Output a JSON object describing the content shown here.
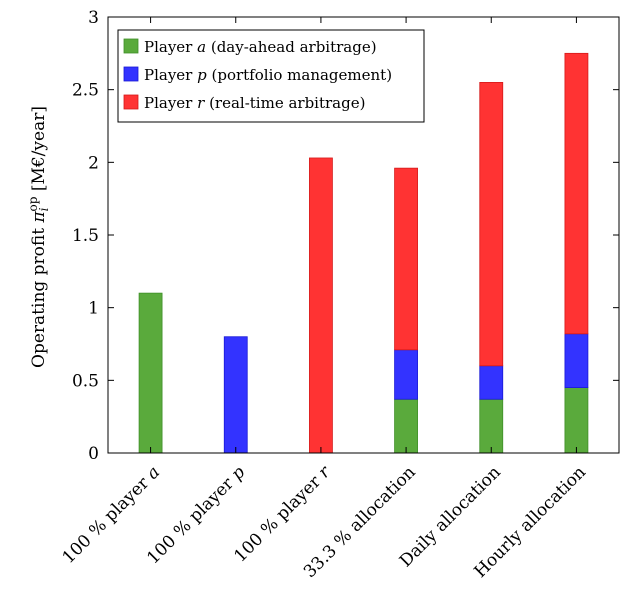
{
  "chart_data": {
    "type": "bar",
    "stacked": true,
    "title": "",
    "xlabel": "",
    "ylabel": "Operating profit π_i^op [M€/year]",
    "ylabel_parts": {
      "main": "Operating profit ",
      "pi": "π",
      "sub": "i",
      "sup": "op",
      "unit": " [M€/year]"
    },
    "ylim": [
      0,
      3
    ],
    "yticks": [
      0,
      0.5,
      1,
      1.5,
      2,
      2.5,
      3
    ],
    "ytick_labels": [
      "0",
      "0.5",
      "1",
      "1.5",
      "2",
      "2.5",
      "3"
    ],
    "grid": false,
    "legend_position": "top-left",
    "categories": [
      "100 % player a",
      "100 % player p",
      "100 % player r",
      "33.3 % allocation",
      "Daily allocation",
      "Hourly allocation"
    ],
    "category_labels": [
      {
        "parts": [
          {
            "t": "100 % player "
          },
          {
            "t": "a",
            "italic": true
          }
        ]
      },
      {
        "parts": [
          {
            "t": "100 % player "
          },
          {
            "t": "p",
            "italic": true
          }
        ]
      },
      {
        "parts": [
          {
            "t": "100 % player "
          },
          {
            "t": "r",
            "italic": true
          }
        ]
      },
      {
        "parts": [
          {
            "t": "33.3 % allocation"
          }
        ]
      },
      {
        "parts": [
          {
            "t": "Daily allocation"
          }
        ]
      },
      {
        "parts": [
          {
            "t": "Hourly allocation"
          }
        ]
      }
    ],
    "series": [
      {
        "name": "Player a (day-ahead arbitrage)",
        "legend_parts": [
          {
            "t": "Player "
          },
          {
            "t": "a",
            "italic": true
          },
          {
            "t": " (day-ahead arbitrage)"
          }
        ],
        "color": "#5aaa3c",
        "stroke": "#3f8f28",
        "values": [
          1.1,
          0,
          0,
          0.37,
          0.37,
          0.45
        ]
      },
      {
        "name": "Player p (portfolio management)",
        "legend_parts": [
          {
            "t": "Player "
          },
          {
            "t": "p",
            "italic": true
          },
          {
            "t": " (portfolio management)"
          }
        ],
        "color": "#3333ff",
        "stroke": "#1a1ad6",
        "values": [
          0,
          0.8,
          0,
          0.34,
          0.23,
          0.37
        ]
      },
      {
        "name": "Player r (real-time arbitrage)",
        "legend_parts": [
          {
            "t": "Player "
          },
          {
            "t": "r",
            "italic": true
          },
          {
            "t": " (real-time arbitrage)"
          }
        ],
        "color": "#ff3333",
        "stroke": "#d61a1a",
        "values": [
          0,
          0,
          2.03,
          1.25,
          1.95,
          1.93
        ]
      }
    ]
  }
}
